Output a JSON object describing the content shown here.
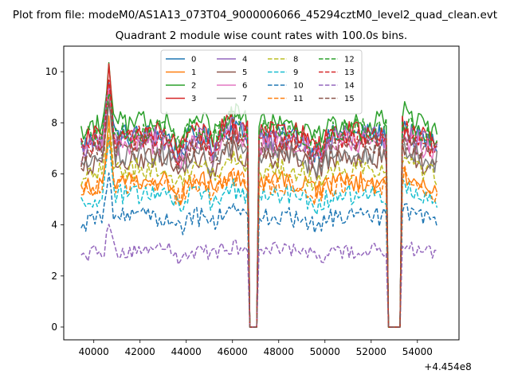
{
  "figure": {
    "suptitle": "Plot from file: modeM0/AS1A13_073T04_9000006066_45294cztM0_level2_quad_clean.evt",
    "title": "Quadrant 2 module wise count rates with 100.0s bins.",
    "offset_label": "+4.454e8"
  },
  "chart_data": {
    "type": "line",
    "title": "Quadrant 2 module wise count rates with 100.0s bins.",
    "xlabel": "",
    "ylabel": "",
    "x_offset": 445400000,
    "xlim": [
      38700,
      55800
    ],
    "ylim": [
      -0.5,
      11.0
    ],
    "x_ticks": [
      40000,
      42000,
      44000,
      46000,
      48000,
      50000,
      52000,
      54000
    ],
    "y_ticks": [
      0,
      2,
      4,
      6,
      8,
      10
    ],
    "x_range": [
      39450,
      54850
    ],
    "x_step": 100,
    "gaps": [
      [
        46700,
        47050
      ],
      [
        52750,
        53250
      ]
    ],
    "legend_position": "upper center",
    "series": [
      {
        "name": "0",
        "color": "#1f77b4",
        "dash": "solid",
        "baseline": 7.5,
        "peak": 10.0
      },
      {
        "name": "1",
        "color": "#ff7f0e",
        "dash": "solid",
        "baseline": 5.7,
        "peak": 8.0
      },
      {
        "name": "2",
        "color": "#2ca02c",
        "dash": "solid",
        "baseline": 8.0,
        "peak": 10.3
      },
      {
        "name": "3",
        "color": "#d62728",
        "dash": "solid",
        "baseline": 7.6,
        "peak": 10.5
      },
      {
        "name": "4",
        "color": "#9467bd",
        "dash": "solid",
        "baseline": 7.4,
        "peak": 9.6
      },
      {
        "name": "5",
        "color": "#8c564b",
        "dash": "solid",
        "baseline": 6.6,
        "peak": 9.0
      },
      {
        "name": "6",
        "color": "#e377c2",
        "dash": "solid",
        "baseline": 7.2,
        "peak": 9.4
      },
      {
        "name": "7",
        "color": "#7f7f7f",
        "dash": "solid",
        "baseline": 6.8,
        "peak": 9.0
      },
      {
        "name": "8",
        "color": "#bcbd22",
        "dash": "dashed",
        "baseline": 6.2,
        "peak": 8.2
      },
      {
        "name": "9",
        "color": "#17becf",
        "dash": "dashed",
        "baseline": 5.2,
        "peak": 7.2
      },
      {
        "name": "10",
        "color": "#1f77b4",
        "dash": "dashed",
        "baseline": 4.3,
        "peak": 6.0
      },
      {
        "name": "11",
        "color": "#ff7f0e",
        "dash": "dashed",
        "baseline": 5.6,
        "peak": 7.6
      },
      {
        "name": "12",
        "color": "#2ca02c",
        "dash": "dashed",
        "baseline": 7.7,
        "peak": 9.6
      },
      {
        "name": "13",
        "color": "#d62728",
        "dash": "dashed",
        "baseline": 7.4,
        "peak": 9.4
      },
      {
        "name": "14",
        "color": "#9467bd",
        "dash": "dashed",
        "baseline": 3.0,
        "peak": 4.0
      },
      {
        "name": "15",
        "color": "#8c564b",
        "dash": "dashed",
        "baseline": 7.1,
        "peak": 9.0
      }
    ]
  }
}
